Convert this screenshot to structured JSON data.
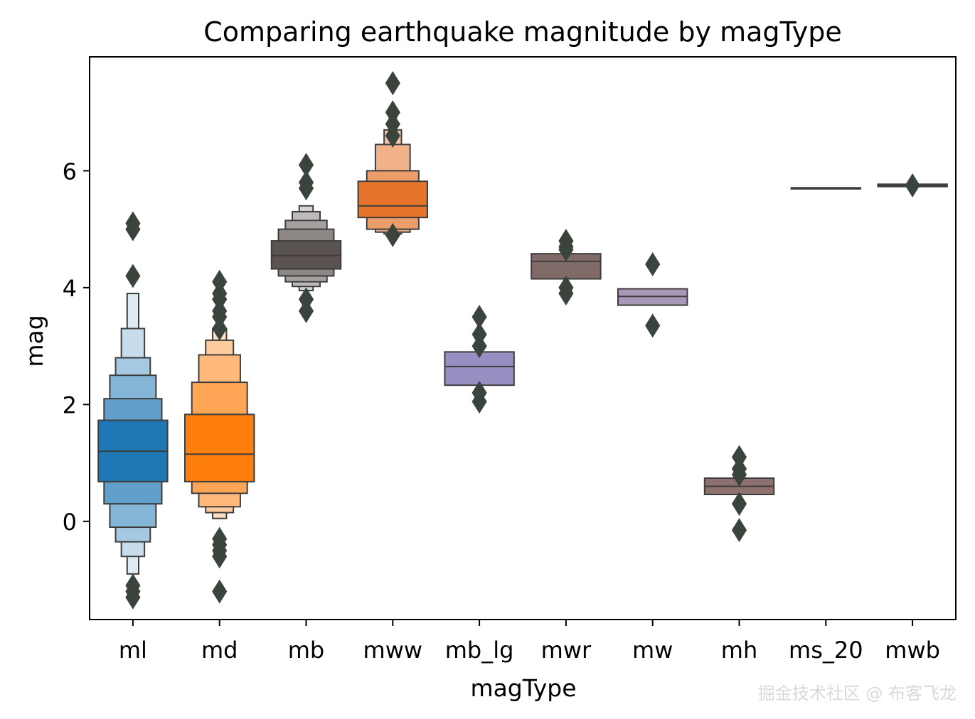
{
  "chart_data": {
    "type": "boxenplot",
    "title": "Comparing earthquake magnitude by magType",
    "xlabel": "magType",
    "ylabel": "mag",
    "ylim": [
      -1.68,
      7.95
    ],
    "yticks": [
      0,
      2,
      4,
      6
    ],
    "yticklabels": [
      "0",
      "2",
      "4",
      "6"
    ],
    "categories": [
      "ml",
      "md",
      "mb",
      "mww",
      "mb_lg",
      "mwr",
      "mw",
      "mh",
      "ms_20",
      "mwb"
    ],
    "series": [
      {
        "name": "ml",
        "color": "#1f77b4",
        "median": 1.2,
        "levels": [
          [
            0.68,
            1.73
          ],
          [
            0.3,
            2.1
          ],
          [
            -0.1,
            2.5
          ],
          [
            -0.35,
            2.8
          ],
          [
            -0.6,
            3.3
          ],
          [
            -0.9,
            3.9
          ]
        ],
        "outliers": [
          5.1,
          5.0,
          4.2,
          -1.1,
          -1.2,
          -1.3
        ]
      },
      {
        "name": "md",
        "color": "#ff7f0e",
        "median": 1.15,
        "levels": [
          [
            0.68,
            1.83
          ],
          [
            0.48,
            2.38
          ],
          [
            0.25,
            2.85
          ],
          [
            0.15,
            3.1
          ],
          [
            0.05,
            3.3
          ]
        ],
        "outliers": [
          4.1,
          3.9,
          3.8,
          3.6,
          3.5,
          3.3,
          -0.3,
          -0.4,
          -0.5,
          -0.6,
          -1.2
        ]
      },
      {
        "name": "mb",
        "color": "#5b5350",
        "median": 4.55,
        "levels": [
          [
            4.32,
            4.8
          ],
          [
            4.2,
            5.0
          ],
          [
            4.1,
            5.15
          ],
          [
            4.02,
            5.3
          ],
          [
            3.95,
            5.4
          ]
        ],
        "outliers": [
          6.1,
          5.8,
          5.7,
          3.8,
          3.6
        ]
      },
      {
        "name": "mww",
        "color": "#e5732a",
        "median": 5.4,
        "levels": [
          [
            5.2,
            5.82
          ],
          [
            5.0,
            6.0
          ],
          [
            4.95,
            6.45
          ],
          [
            4.92,
            6.7
          ]
        ],
        "outliers": [
          7.5,
          7.0,
          6.8,
          6.6,
          4.9
        ]
      },
      {
        "name": "mb_lg",
        "color": "#9a8fc2",
        "median": 2.65,
        "levels": [
          [
            2.33,
            2.9
          ]
        ],
        "outliers": [
          3.5,
          3.2,
          3.0,
          2.2,
          2.05
        ]
      },
      {
        "name": "mwr",
        "color": "#806b68",
        "median": 4.45,
        "levels": [
          [
            4.15,
            4.58
          ]
        ],
        "outliers": [
          4.8,
          4.7,
          4.65,
          4.0,
          3.9
        ]
      },
      {
        "name": "mw",
        "color": "#a897b6",
        "median": 3.85,
        "levels": [
          [
            3.7,
            3.98
          ]
        ],
        "outliers": [
          4.4,
          3.35
        ]
      },
      {
        "name": "mh",
        "color": "#8c716f",
        "median": 0.6,
        "levels": [
          [
            0.46,
            0.74
          ]
        ],
        "outliers": [
          1.1,
          0.9,
          0.8,
          0.3,
          -0.15
        ]
      },
      {
        "name": "ms_20",
        "color": "#8f8f8f",
        "median": 5.7,
        "levels": [
          [
            5.69,
            5.71
          ]
        ],
        "outliers": []
      },
      {
        "name": "mwb",
        "color": "#9a9a9a",
        "median": 5.75,
        "levels": [
          [
            5.73,
            5.77
          ]
        ],
        "outliers": [
          5.75
        ]
      }
    ]
  },
  "watermark": "掘金技术社区 @ 布客飞龙"
}
